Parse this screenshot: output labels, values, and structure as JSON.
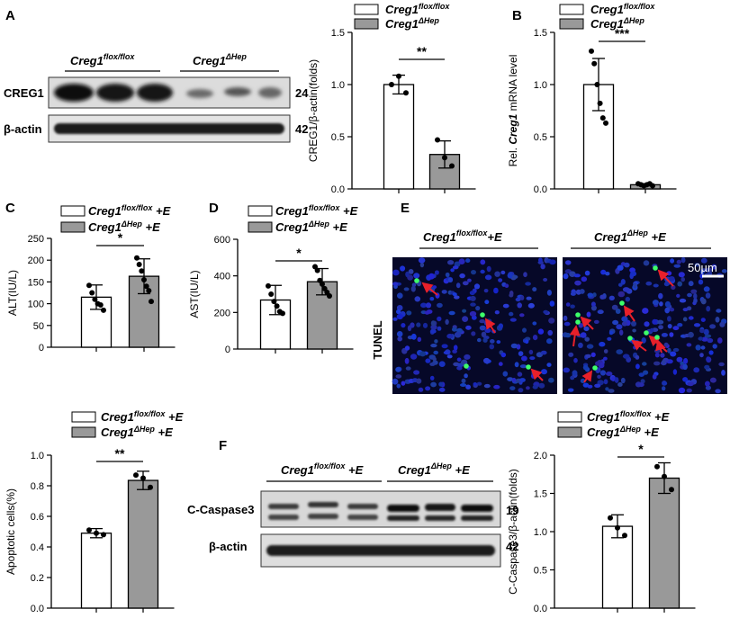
{
  "panels": {
    "A": "A",
    "B": "B",
    "C": "C",
    "D": "D",
    "E": "E",
    "F": "F"
  },
  "legend": {
    "flox": {
      "gene": "Creg1",
      "sup": "flox/flox",
      "suffix": ""
    },
    "hep": {
      "gene": "Creg1",
      "sup": "ΔHep",
      "suffix": ""
    },
    "flox_e": {
      "gene": "Creg1",
      "sup": "flox/flox",
      "suffix": " +E"
    },
    "hep_e": {
      "gene": "Creg1",
      "sup": "ΔHep",
      "suffix": " +E"
    }
  },
  "blotA": {
    "group1": {
      "gene": "Creg1",
      "sup": "flox/flox"
    },
    "group2": {
      "gene": "Creg1",
      "sup": "ΔHep"
    },
    "row1_label": "CREG1",
    "row1_mw": "24",
    "row2_label": "β-actin",
    "row2_mw": "42"
  },
  "blotF": {
    "group1": {
      "gene": "Creg1",
      "sup": "flox/flox",
      "suffix": " +E"
    },
    "group2": {
      "gene": "Creg1",
      "sup": "ΔHep",
      "suffix": " +E"
    },
    "row1_label": "C-Caspase3",
    "row1_mw": "19",
    "row2_label": "β-actin",
    "row2_mw": "42"
  },
  "tunel": {
    "row_label": "TUNEL",
    "left_title": {
      "gene": "Creg1",
      "sup": "flox/flox",
      "suffix": "+E"
    },
    "right_title": {
      "gene": "Creg1",
      "sup": "ΔHep",
      "suffix": " +E"
    },
    "scale_bar": "50µm"
  },
  "colors": {
    "bar_control": "#ffffff",
    "bar_ko": "#999999",
    "nuclei": "#2230b8",
    "tunel_positive": "#3dff6a",
    "arrow": "#e8202a"
  },
  "chart_data": [
    {
      "id": "A-quant",
      "type": "bar",
      "categories": [
        "Creg1 flox/flox",
        "Creg1 ΔHep"
      ],
      "values": [
        1.0,
        0.33
      ],
      "errors": [
        0.09,
        0.13
      ],
      "points": [
        [
          1.0,
          1.08,
          0.92
        ],
        [
          0.47,
          0.3,
          0.22
        ]
      ],
      "ylabel": "CREG1/β-actin(folds)",
      "ylim": [
        0,
        1.5
      ],
      "yticks": [
        0.0,
        0.5,
        1.0,
        1.5
      ],
      "ytick_labels": [
        "0.0",
        "0.5",
        "1.0",
        "1.5"
      ],
      "significance": "**"
    },
    {
      "id": "B",
      "type": "bar",
      "categories": [
        "Creg1 flox/flox",
        "Creg1 ΔHep"
      ],
      "values": [
        1.0,
        0.04
      ],
      "errors": [
        0.25,
        0.01
      ],
      "points": [
        [
          1.32,
          1.2,
          1.0,
          0.82,
          0.68,
          0.63
        ],
        [
          0.05,
          0.04,
          0.03,
          0.04,
          0.05,
          0.03
        ]
      ],
      "ylabel_pre": "Rel. ",
      "ylabel_gene": "Creg1",
      "ylabel_post": " mRNA level",
      "ylim": [
        0,
        1.5
      ],
      "yticks": [
        0.0,
        0.5,
        1.0,
        1.5
      ],
      "ytick_labels": [
        "0.0",
        "0.5",
        "1.0",
        "1.5"
      ],
      "significance": "***"
    },
    {
      "id": "C",
      "type": "bar",
      "categories": [
        "Creg1 flox/flox +E",
        "Creg1 ΔHep +E"
      ],
      "values": [
        115,
        163
      ],
      "errors": [
        28,
        40
      ],
      "points": [
        [
          142,
          125,
          110,
          100,
          97,
          85
        ],
        [
          205,
          190,
          175,
          155,
          140,
          130,
          105
        ]
      ],
      "ylabel": "ALT(IU/L)",
      "ylim": [
        0,
        250
      ],
      "yticks": [
        0,
        50,
        100,
        150,
        200,
        250
      ],
      "ytick_labels": [
        "0",
        "50",
        "100",
        "150",
        "200",
        "250"
      ],
      "significance": "*"
    },
    {
      "id": "D",
      "type": "bar",
      "categories": [
        "Creg1 flox/flox +E",
        "Creg1 ΔHep +E"
      ],
      "values": [
        268,
        368
      ],
      "errors": [
        80,
        72
      ],
      "points": [
        [
          345,
          300,
          260,
          235,
          205,
          195
        ],
        [
          450,
          430,
          375,
          355,
          330,
          310,
          290
        ]
      ],
      "ylabel": "AST(IU/L)",
      "ylim": [
        0,
        600
      ],
      "yticks": [
        0,
        200,
        400,
        600
      ],
      "ytick_labels": [
        "0",
        "200",
        "400",
        "600"
      ],
      "significance": "*"
    },
    {
      "id": "E-quant",
      "type": "bar",
      "categories": [
        "Creg1 flox/flox +E",
        "Creg1 ΔHep +E"
      ],
      "values": [
        0.49,
        0.835
      ],
      "errors": [
        0.03,
        0.06
      ],
      "points": [
        [
          0.51,
          0.49,
          0.48
        ],
        [
          0.87,
          0.85,
          0.79
        ]
      ],
      "ylabel": "Apoptotic cells(%)",
      "ylim": [
        0.0,
        1.0
      ],
      "yticks": [
        0.0,
        0.2,
        0.4,
        0.6,
        0.8,
        1.0
      ],
      "ytick_labels": [
        "0.0",
        "0.2",
        "0.4",
        "0.6",
        "0.8",
        "1.0"
      ],
      "significance": "**"
    },
    {
      "id": "F-quant",
      "type": "bar",
      "categories": [
        "Creg1 flox/flox +E",
        "Creg1 ΔHep +E"
      ],
      "values": [
        1.07,
        1.7
      ],
      "errors": [
        0.15,
        0.2
      ],
      "points": [
        [
          1.18,
          1.05,
          0.95
        ],
        [
          1.85,
          1.72,
          1.55
        ]
      ],
      "ylabel": "C-Caspase3/β-actin(folds)",
      "ylim": [
        0.0,
        2.0
      ],
      "yticks": [
        0.0,
        0.5,
        1.0,
        1.5,
        2.0
      ],
      "ytick_labels": [
        "0.0",
        "0.5",
        "1.0",
        "1.5",
        "2.0"
      ],
      "significance": "*"
    }
  ]
}
